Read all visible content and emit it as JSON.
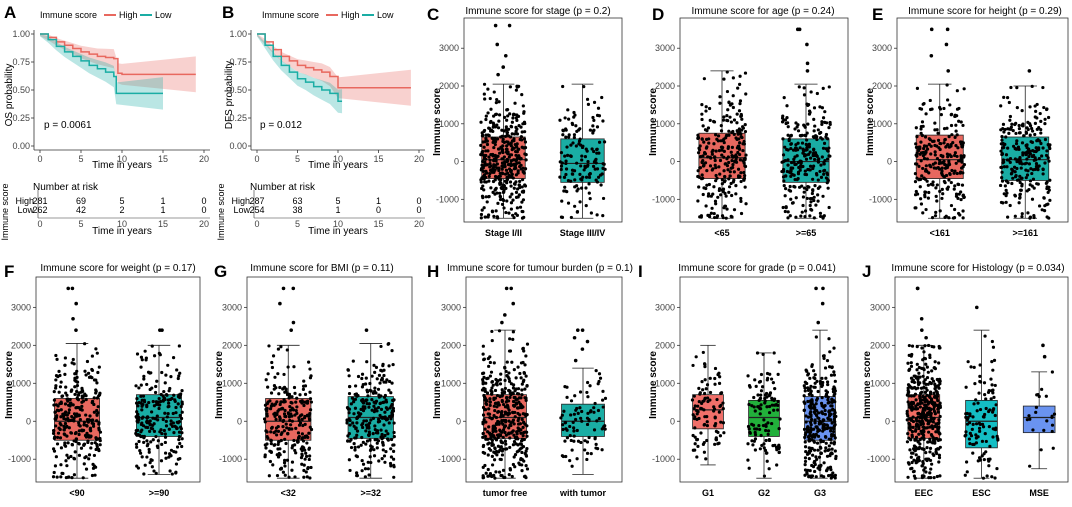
{
  "colors": {
    "high": "#e8685f",
    "low": "#1aada4",
    "g1": "#f0706a",
    "g2": "#22b03b",
    "g3": "#6a93f0",
    "box": "#f16d63",
    "box2": "#14bec4"
  },
  "survival": [
    {
      "label": "A",
      "ylabel": "OS probability",
      "xlabel": "Time in years",
      "pvalue": "p = 0.0061",
      "legend_title": "Immune score",
      "legend_high": "High",
      "legend_low": "Low",
      "xticks": [
        "0",
        "5",
        "10",
        "15",
        "20"
      ],
      "yticks": [
        "0.00",
        "0.25",
        "0.50",
        "0.75",
        "1.00"
      ],
      "xlim": [
        0,
        20
      ],
      "high_curve": [
        [
          0,
          1.0
        ],
        [
          1,
          0.97
        ],
        [
          2,
          0.93
        ],
        [
          3,
          0.9
        ],
        [
          4,
          0.87
        ],
        [
          5,
          0.84
        ],
        [
          6,
          0.82
        ],
        [
          7,
          0.8
        ],
        [
          8,
          0.79
        ],
        [
          9,
          0.78
        ],
        [
          9.5,
          0.65
        ],
        [
          10,
          0.64
        ],
        [
          15,
          0.64
        ],
        [
          19,
          0.64
        ]
      ],
      "low_curve": [
        [
          0,
          1.0
        ],
        [
          1,
          0.95
        ],
        [
          2,
          0.89
        ],
        [
          3,
          0.84
        ],
        [
          4,
          0.8
        ],
        [
          5,
          0.76
        ],
        [
          6,
          0.72
        ],
        [
          7,
          0.69
        ],
        [
          8,
          0.66
        ],
        [
          9,
          0.62
        ],
        [
          9.3,
          0.47
        ],
        [
          15,
          0.47
        ]
      ],
      "risk_title": "Number at risk",
      "risk_ylabel": "Immune score",
      "risk_rows": [
        {
          "group": "High",
          "counts": [
            "281",
            "69",
            "5",
            "1",
            "0"
          ]
        },
        {
          "group": "Low",
          "counts": [
            "262",
            "42",
            "2",
            "1",
            "0"
          ]
        }
      ]
    },
    {
      "label": "B",
      "ylabel": "DFS probability",
      "xlabel": "Time in years",
      "pvalue": "p = 0.012",
      "legend_title": "Immune score",
      "legend_high": "High",
      "legend_low": "Low",
      "xticks": [
        "0",
        "5",
        "10",
        "15",
        "20"
      ],
      "yticks": [
        "0.00",
        "0.25",
        "0.50",
        "0.75",
        "1.00"
      ],
      "xlim": [
        0,
        20
      ],
      "high_curve": [
        [
          0,
          1.0
        ],
        [
          1,
          0.93
        ],
        [
          2,
          0.86
        ],
        [
          3,
          0.8
        ],
        [
          4,
          0.76
        ],
        [
          5,
          0.72
        ],
        [
          6,
          0.7
        ],
        [
          7,
          0.68
        ],
        [
          8,
          0.66
        ],
        [
          9,
          0.62
        ],
        [
          10,
          0.52
        ],
        [
          15,
          0.52
        ],
        [
          19,
          0.52
        ]
      ],
      "low_curve": [
        [
          0,
          1.0
        ],
        [
          1,
          0.9
        ],
        [
          2,
          0.8
        ],
        [
          3,
          0.72
        ],
        [
          4,
          0.66
        ],
        [
          5,
          0.6
        ],
        [
          6,
          0.57
        ],
        [
          7,
          0.53
        ],
        [
          8,
          0.5
        ],
        [
          9,
          0.47
        ],
        [
          10,
          0.4
        ],
        [
          10.5,
          0.4
        ]
      ],
      "risk_title": "Number at risk",
      "risk_ylabel": "Immune score",
      "risk_rows": [
        {
          "group": "High",
          "counts": [
            "287",
            "63",
            "5",
            "1",
            "0"
          ]
        },
        {
          "group": "Low",
          "counts": [
            "254",
            "38",
            "1",
            "0",
            "0"
          ]
        }
      ]
    }
  ],
  "chart_data": [
    {
      "type": "box",
      "label": "C",
      "title": "Immune score for stage (p = 0.2)",
      "ylabel": "Immune score",
      "ylim": [
        -1600,
        3800
      ],
      "yticks": [
        "-1000",
        "0",
        "1000",
        "2000",
        "3000"
      ],
      "groups": [
        {
          "name": "Stage I/II",
          "color": "high",
          "min": -1500,
          "q1": -450,
          "median": 50,
          "q3": 650,
          "max": 2050,
          "n": 420,
          "outliers": [
            2300,
            2500,
            2800,
            3100,
            3600,
            3600
          ]
        },
        {
          "name": "Stage III/IV",
          "color": "low",
          "min": -1500,
          "q1": -550,
          "median": -50,
          "q3": 600,
          "max": 2050,
          "n": 150,
          "outliers": []
        }
      ]
    },
    {
      "type": "box",
      "label": "D",
      "title": "Immune score for age (p = 0.24)",
      "ylabel": "Immune score",
      "ylim": [
        -1600,
        3800
      ],
      "yticks": [
        "-1000",
        "0",
        "1000",
        "2000",
        "3000"
      ],
      "groups": [
        {
          "name": "<65",
          "color": "high",
          "min": -1500,
          "q1": -450,
          "median": 100,
          "q3": 750,
          "max": 2400,
          "n": 280,
          "outliers": []
        },
        {
          "name": ">=65",
          "color": "low",
          "min": -1500,
          "q1": -550,
          "median": 0,
          "q3": 600,
          "max": 2050,
          "n": 270,
          "outliers": [
            2400,
            2600,
            3100,
            3500,
            3500
          ]
        }
      ]
    },
    {
      "type": "box",
      "label": "E",
      "title": "Immune score for height (p = 0.29)",
      "ylabel": "Immune score",
      "ylim": [
        -1600,
        3800
      ],
      "yticks": [
        "-1000",
        "0",
        "1000",
        "2000",
        "3000"
      ],
      "groups": [
        {
          "name": "<161",
          "color": "high",
          "min": -1500,
          "q1": -450,
          "median": 50,
          "q3": 700,
          "max": 2050,
          "n": 260,
          "outliers": [
            2400,
            2800,
            3100,
            3500,
            3500
          ]
        },
        {
          "name": ">=161",
          "color": "low",
          "min": -1500,
          "q1": -500,
          "median": 50,
          "q3": 650,
          "max": 2000,
          "n": 260,
          "outliers": [
            2400
          ]
        }
      ]
    },
    {
      "type": "box",
      "label": "F",
      "title": "Immune score for weight (p = 0.17)",
      "ylabel": "Immune score",
      "ylim": [
        -1600,
        3800
      ],
      "yticks": [
        "-1000",
        "0",
        "1000",
        "2000",
        "3000"
      ],
      "groups": [
        {
          "name": "<90",
          "color": "high",
          "min": -1500,
          "q1": -500,
          "median": 0,
          "q3": 600,
          "max": 2050,
          "n": 300,
          "outliers": [
            2400,
            2700,
            3100,
            3500,
            3500
          ]
        },
        {
          "name": ">=90",
          "color": "low",
          "min": -1400,
          "q1": -400,
          "median": 100,
          "q3": 700,
          "max": 2000,
          "n": 230,
          "outliers": [
            2400,
            2400
          ]
        }
      ]
    },
    {
      "type": "box",
      "label": "G",
      "title": "Immune score for BMI (p = 0.11)",
      "ylabel": "Immune score",
      "ylim": [
        -1600,
        3800
      ],
      "yticks": [
        "-1000",
        "0",
        "1000",
        "2000",
        "3000"
      ],
      "groups": [
        {
          "name": "<32",
          "color": "high",
          "min": -1500,
          "q1": -500,
          "median": 0,
          "q3": 600,
          "max": 2000,
          "n": 260,
          "outliers": [
            2400,
            2600,
            3100,
            3500,
            3500
          ]
        },
        {
          "name": ">=32",
          "color": "low",
          "min": -1500,
          "q1": -450,
          "median": 100,
          "q3": 650,
          "max": 2050,
          "n": 270,
          "outliers": [
            2400
          ]
        }
      ]
    },
    {
      "type": "box",
      "label": "H",
      "title": "Immune score for tumour burden (p = 0.1)",
      "ylabel": "Immune score",
      "ylim": [
        -1600,
        3800
      ],
      "yticks": [
        "-1000",
        "0",
        "1000",
        "2000",
        "3000"
      ],
      "groups": [
        {
          "name": "tumor free",
          "color": "high",
          "min": -1500,
          "q1": -450,
          "median": 100,
          "q3": 700,
          "max": 2400,
          "n": 420,
          "outliers": [
            2600,
            2800,
            3100,
            3500,
            3500
          ]
        },
        {
          "name": "with tumor",
          "color": "low",
          "min": -1400,
          "q1": -400,
          "median": 0,
          "q3": 450,
          "max": 1400,
          "n": 90,
          "outliers": [
            1600,
            1900,
            2100,
            2200,
            2400,
            2400
          ]
        }
      ]
    },
    {
      "type": "box",
      "label": "I",
      "title": "Immune score for grade (p = 0.041)",
      "ylabel": "Immune score",
      "ylim": [
        -1600,
        3800
      ],
      "yticks": [
        "-1000",
        "0",
        "1000",
        "2000",
        "3000"
      ],
      "groups": [
        {
          "name": "G1",
          "color": "g1",
          "min": -1150,
          "q1": -200,
          "median": 300,
          "q3": 700,
          "max": 2000,
          "n": 100,
          "outliers": []
        },
        {
          "name": "G2",
          "color": "g2",
          "min": -1500,
          "q1": -400,
          "median": 100,
          "q3": 550,
          "max": 1800,
          "n": 120,
          "outliers": []
        },
        {
          "name": "G3",
          "color": "g3",
          "min": -1500,
          "q1": -500,
          "median": 0,
          "q3": 650,
          "max": 2400,
          "n": 320,
          "outliers": [
            2600,
            3100,
            3500,
            3500
          ]
        }
      ]
    },
    {
      "type": "box",
      "label": "J",
      "title": "Immune score for Histology (p = 0.034)",
      "ylabel": "Immune score",
      "ylim": [
        -1600,
        3800
      ],
      "yticks": [
        "-1000",
        "0",
        "1000",
        "2000",
        "3000"
      ],
      "groups": [
        {
          "name": "EEC",
          "color": "box",
          "min": -1500,
          "q1": -450,
          "median": 100,
          "q3": 700,
          "max": 2000,
          "n": 400,
          "outliers": [
            2200,
            2400,
            2700,
            3500,
            3500
          ]
        },
        {
          "name": "ESC",
          "color": "box2",
          "min": -1500,
          "q1": -700,
          "median": 0,
          "q3": 550,
          "max": 2400,
          "n": 110,
          "outliers": [
            3000
          ]
        },
        {
          "name": "MSE",
          "color": "g3",
          "min": -1250,
          "q1": -300,
          "median": 100,
          "q3": 400,
          "max": 1300,
          "n": 22,
          "outliers": [
            1700,
            2000
          ]
        }
      ]
    }
  ]
}
